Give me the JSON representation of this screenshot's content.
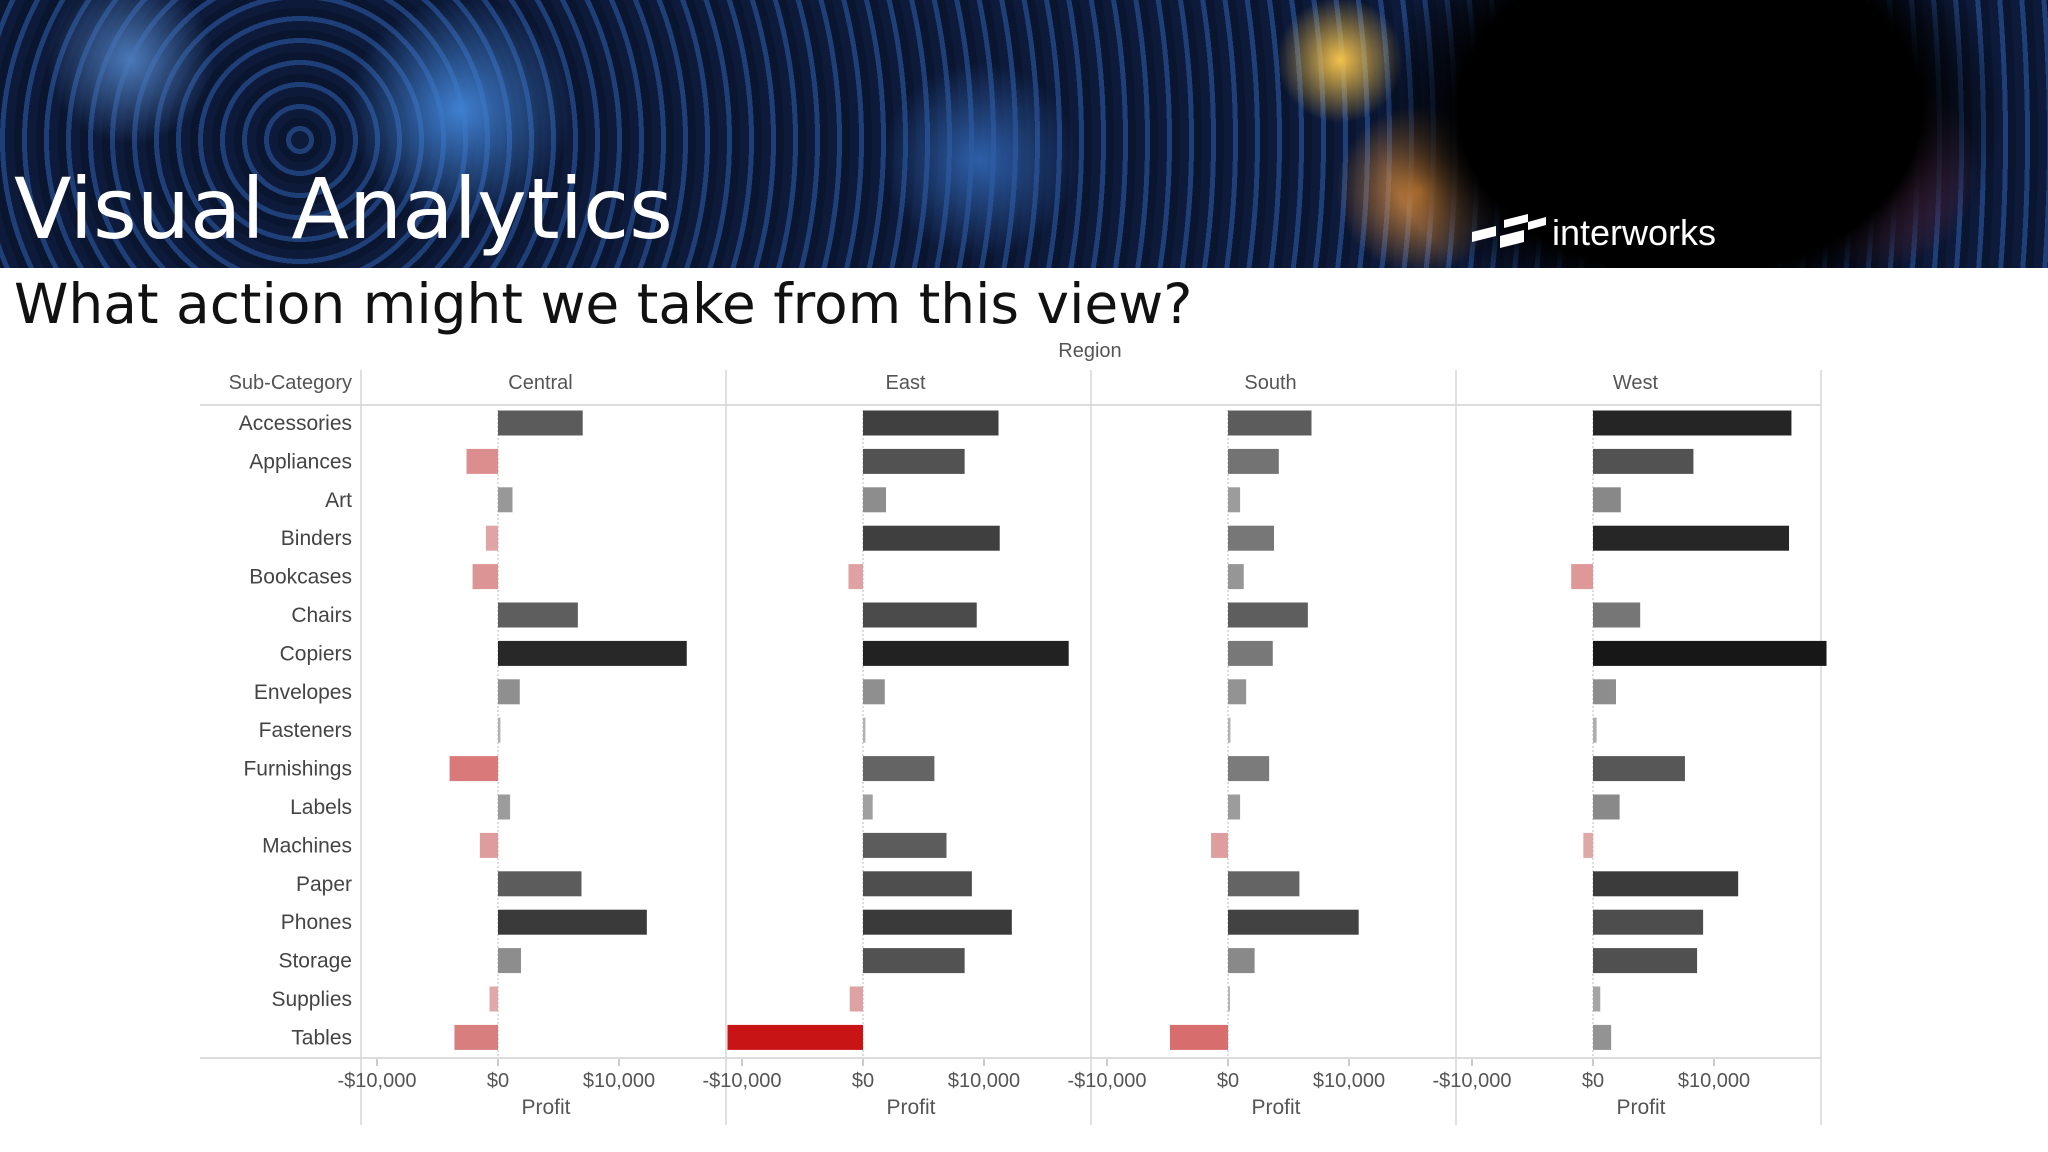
{
  "slide": {
    "title": "Visual Analytics",
    "logo_text": "interworks",
    "question": "What action might we take from this view?"
  },
  "chart_data": {
    "type": "bar",
    "orientation": "horizontal",
    "facet_title": "Region",
    "row_header": "Sub-Category",
    "panels": [
      "Central",
      "East",
      "South",
      "West"
    ],
    "categories": [
      "Accessories",
      "Appliances",
      "Art",
      "Binders",
      "Bookcases",
      "Chairs",
      "Copiers",
      "Envelopes",
      "Fasteners",
      "Furnishings",
      "Labels",
      "Machines",
      "Paper",
      "Phones",
      "Storage",
      "Supplies",
      "Tables"
    ],
    "series": [
      {
        "name": "Central",
        "values": [
          7000,
          -2600,
          1200,
          -1000,
          -2100,
          6600,
          15600,
          1800,
          200,
          -4000,
          1000,
          -1500,
          6900,
          12300,
          1900,
          -700,
          -3600
        ]
      },
      {
        "name": "East",
        "values": [
          11200,
          8400,
          1900,
          11300,
          -1200,
          9400,
          17000,
          1800,
          200,
          5900,
          800,
          6900,
          9000,
          12300,
          8400,
          -1100,
          -11200
        ]
      },
      {
        "name": "South",
        "values": [
          6900,
          4200,
          1000,
          3800,
          1300,
          6600,
          3700,
          1500,
          200,
          3400,
          1000,
          -1400,
          5900,
          10800,
          2200,
          100,
          -4800
        ]
      },
      {
        "name": "West",
        "values": [
          16400,
          8300,
          2300,
          16200,
          -1800,
          3900,
          19300,
          1900,
          300,
          7600,
          2200,
          -800,
          12000,
          9100,
          8600,
          600,
          1500
        ]
      }
    ],
    "x_ticks": [
      "-$10,000",
      "$0",
      "$10,000"
    ],
    "xlabel": "Profit",
    "xlim": [
      -12000,
      22000
    ],
    "grid": false,
    "color_encoding": "diverging: red for losses, light gray to black for profit"
  }
}
